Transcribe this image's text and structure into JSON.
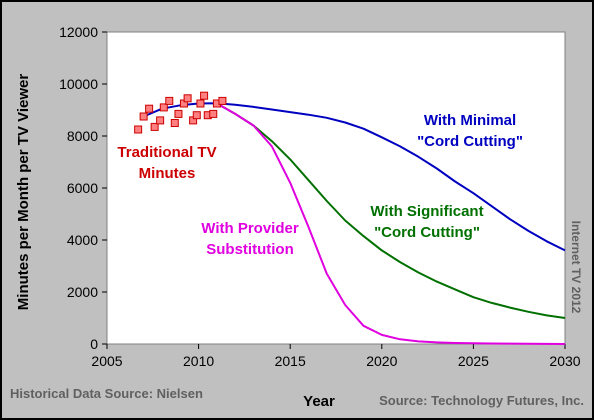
{
  "chart_data": {
    "type": "line",
    "xlabel": "Year",
    "ylabel": "Minutes per Month per TV Viewer",
    "xlim": [
      2005,
      2030
    ],
    "ylim": [
      0,
      12000
    ],
    "x_ticks": [
      "2005",
      "2010",
      "2015",
      "2020",
      "2025",
      "2030"
    ],
    "y_ticks": [
      "0",
      "2000",
      "4000",
      "6000",
      "8000",
      "10000",
      "12000"
    ],
    "grid": false,
    "colors": {
      "background": "#c0c0c0",
      "plot_area": "#ffffff",
      "minimal": "#0000c0",
      "significant": "#007000",
      "provider": "#e000e0",
      "historical": "#ff8080",
      "historical_edge": "#cc0000",
      "historical_label": "#cc0000",
      "source_text": "#606060"
    },
    "series": [
      {
        "name": "With Minimal \"Cord Cutting\"",
        "color": "#0000c0",
        "points": [
          [
            2007,
            8750
          ],
          [
            2008,
            9050
          ],
          [
            2009,
            9180
          ],
          [
            2010,
            9250
          ],
          [
            2011,
            9260
          ],
          [
            2012,
            9200
          ],
          [
            2013,
            9120
          ],
          [
            2014,
            9020
          ],
          [
            2015,
            8920
          ],
          [
            2016,
            8820
          ],
          [
            2017,
            8700
          ],
          [
            2018,
            8520
          ],
          [
            2019,
            8280
          ],
          [
            2020,
            7950
          ],
          [
            2021,
            7600
          ],
          [
            2022,
            7200
          ],
          [
            2023,
            6750
          ],
          [
            2024,
            6250
          ],
          [
            2025,
            5800
          ],
          [
            2026,
            5300
          ],
          [
            2027,
            4800
          ],
          [
            2028,
            4350
          ],
          [
            2029,
            3950
          ],
          [
            2030,
            3600
          ]
        ]
      },
      {
        "name": "With Significant \"Cord Cutting\"",
        "color": "#007000",
        "points": [
          [
            2011,
            9250
          ],
          [
            2012,
            8850
          ],
          [
            2013,
            8400
          ],
          [
            2014,
            7800
          ],
          [
            2015,
            7100
          ],
          [
            2016,
            6300
          ],
          [
            2017,
            5500
          ],
          [
            2018,
            4750
          ],
          [
            2019,
            4150
          ],
          [
            2020,
            3600
          ],
          [
            2021,
            3150
          ],
          [
            2022,
            2750
          ],
          [
            2023,
            2400
          ],
          [
            2024,
            2100
          ],
          [
            2025,
            1800
          ],
          [
            2026,
            1580
          ],
          [
            2027,
            1400
          ],
          [
            2028,
            1240
          ],
          [
            2029,
            1100
          ],
          [
            2030,
            1000
          ]
        ]
      },
      {
        "name": "With Provider Substitution",
        "color": "#e000e0",
        "points": [
          [
            2011,
            9250
          ],
          [
            2012,
            8850
          ],
          [
            2013,
            8400
          ],
          [
            2014,
            7600
          ],
          [
            2015,
            6200
          ],
          [
            2016,
            4500
          ],
          [
            2017,
            2700
          ],
          [
            2018,
            1500
          ],
          [
            2019,
            700
          ],
          [
            2020,
            350
          ],
          [
            2021,
            180
          ],
          [
            2022,
            100
          ],
          [
            2023,
            60
          ],
          [
            2024,
            40
          ],
          [
            2025,
            30
          ],
          [
            2026,
            20
          ],
          [
            2027,
            15
          ],
          [
            2028,
            10
          ],
          [
            2029,
            5
          ],
          [
            2030,
            0
          ]
        ]
      }
    ],
    "historical": {
      "name": "Traditional TV Minutes",
      "points": [
        [
          2006.7,
          8250
        ],
        [
          2007.0,
          8750
        ],
        [
          2007.3,
          9050
        ],
        [
          2007.6,
          8350
        ],
        [
          2007.9,
          8600
        ],
        [
          2008.1,
          9100
        ],
        [
          2008.4,
          9350
        ],
        [
          2008.7,
          8500
        ],
        [
          2008.9,
          8850
        ],
        [
          2009.2,
          9250
        ],
        [
          2009.4,
          9450
        ],
        [
          2009.7,
          8600
        ],
        [
          2009.9,
          8800
        ],
        [
          2010.1,
          9250
        ],
        [
          2010.3,
          9550
        ],
        [
          2010.5,
          8800
        ],
        [
          2010.8,
          8850
        ],
        [
          2011.0,
          9250
        ],
        [
          2011.3,
          9350
        ]
      ]
    },
    "annotations": {
      "minimal_line1": "With Minimal",
      "minimal_line2": "\"Cord Cutting\"",
      "significant_line1": "With Significant",
      "significant_line2": "\"Cord Cutting\"",
      "provider_line1": "With Provider",
      "provider_line2": "Substitution",
      "historical_line1": "Traditional TV",
      "historical_line2": "Minutes",
      "watermark": "Internet TV 2012"
    },
    "sources": {
      "left": "Historical Data Source: Nielsen",
      "right": "Source: Technology Futures, Inc."
    }
  }
}
